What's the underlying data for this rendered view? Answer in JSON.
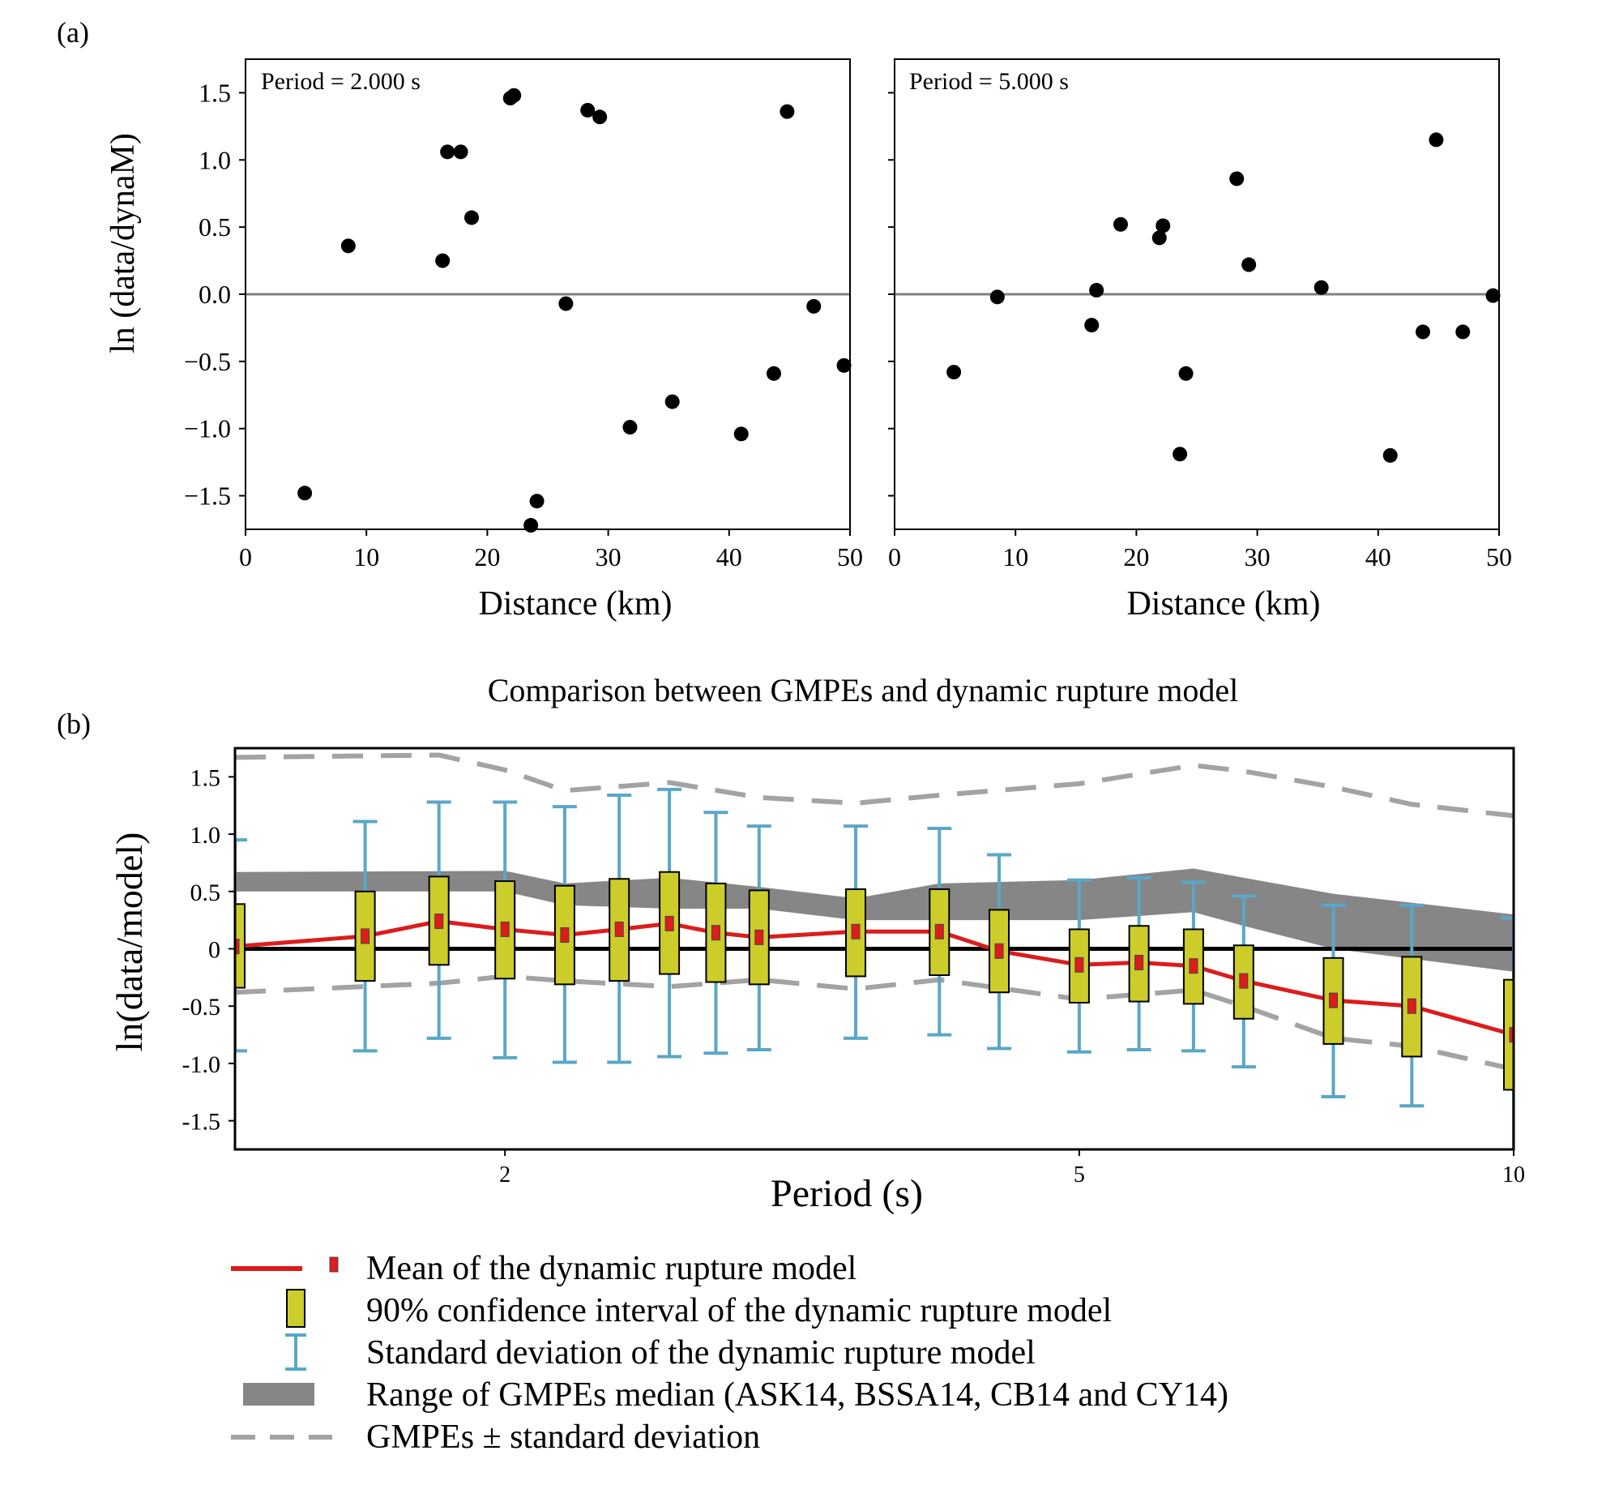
{
  "chart_data": [
    {
      "panel_label": "(a)",
      "type": "scatter",
      "annotation": "Period = 2.000 s",
      "xlabel": "Distance (km)",
      "ylabel": "ln (data/dynaM)",
      "xlim": [
        0,
        50
      ],
      "ylim": [
        -1.75,
        1.75
      ],
      "xticks": [
        0,
        10,
        20,
        30,
        40,
        50
      ],
      "yticks": [
        -1.5,
        -1.0,
        -0.5,
        0.0,
        0.5,
        1.0,
        1.5
      ],
      "ytick_labels": [
        "−1.5",
        "−1.0",
        "−0.5",
        "0.0",
        "0.5",
        "1.0",
        "1.5"
      ],
      "reference_line": 0,
      "points": [
        {
          "x": 4.9,
          "y": -1.48
        },
        {
          "x": 8.5,
          "y": 0.36
        },
        {
          "x": 16.3,
          "y": 0.25
        },
        {
          "x": 16.7,
          "y": 1.06
        },
        {
          "x": 17.8,
          "y": 1.06
        },
        {
          "x": 18.7,
          "y": 0.57
        },
        {
          "x": 21.9,
          "y": 1.46
        },
        {
          "x": 22.2,
          "y": 1.48
        },
        {
          "x": 23.6,
          "y": -1.72
        },
        {
          "x": 24.1,
          "y": -1.54
        },
        {
          "x": 26.5,
          "y": -0.07
        },
        {
          "x": 28.3,
          "y": 1.37
        },
        {
          "x": 29.3,
          "y": 1.32
        },
        {
          "x": 31.8,
          "y": -0.99
        },
        {
          "x": 35.3,
          "y": -0.8
        },
        {
          "x": 41.0,
          "y": -1.04
        },
        {
          "x": 43.7,
          "y": -0.59
        },
        {
          "x": 44.8,
          "y": 1.36
        },
        {
          "x": 47.0,
          "y": -0.09
        },
        {
          "x": 49.5,
          "y": -0.53
        }
      ]
    },
    {
      "type": "scatter",
      "annotation": "Period = 5.000 s",
      "xlabel": "Distance (km)",
      "xlim": [
        0,
        50
      ],
      "ylim": [
        -1.75,
        1.75
      ],
      "xticks": [
        0,
        10,
        20,
        30,
        40,
        50
      ],
      "reference_line": 0,
      "points": [
        {
          "x": 4.9,
          "y": -0.58
        },
        {
          "x": 8.5,
          "y": -0.02
        },
        {
          "x": 16.3,
          "y": -0.23
        },
        {
          "x": 16.7,
          "y": 0.03
        },
        {
          "x": 18.7,
          "y": 0.52
        },
        {
          "x": 21.9,
          "y": 0.42
        },
        {
          "x": 22.2,
          "y": 0.51
        },
        {
          "x": 23.6,
          "y": -1.19
        },
        {
          "x": 24.1,
          "y": -0.59
        },
        {
          "x": 28.3,
          "y": 0.86
        },
        {
          "x": 29.3,
          "y": 0.22
        },
        {
          "x": 35.3,
          "y": 0.05
        },
        {
          "x": 41.0,
          "y": -1.2
        },
        {
          "x": 43.7,
          "y": -0.28
        },
        {
          "x": 44.8,
          "y": 1.15
        },
        {
          "x": 47.0,
          "y": -0.28
        },
        {
          "x": 49.5,
          "y": -0.01
        }
      ]
    },
    {
      "panel_label": "(b)",
      "type": "line",
      "title": "Comparison between GMPEs and dynamic rupture model",
      "xlabel": "Period (s)",
      "ylabel": "ln(data/model)",
      "x_scale": "log",
      "xlim": [
        1.3,
        10.0
      ],
      "ylim": [
        -1.75,
        1.75
      ],
      "xticks": [
        2,
        5,
        10
      ],
      "xtick_labels": [
        "2",
        "5",
        "10"
      ],
      "yticks": [
        -1.5,
        -1.0,
        -0.5,
        0,
        0.5,
        1.0,
        1.5
      ],
      "ytick_labels": [
        "-1.5",
        "-1.0",
        "-0.5",
        "0",
        "0.5",
        "1.0",
        "1.5"
      ],
      "reference_line": 0,
      "periods": [
        1.3,
        1.6,
        1.8,
        2.0,
        2.2,
        2.4,
        2.6,
        2.8,
        3.0,
        3.5,
        4.0,
        4.4,
        5.0,
        5.5,
        6.0,
        6.5,
        7.5,
        8.5,
        10.0
      ],
      "model_mean": [
        0.02,
        0.11,
        0.24,
        0.17,
        0.12,
        0.17,
        0.22,
        0.14,
        0.1,
        0.15,
        0.15,
        -0.02,
        -0.14,
        -0.12,
        -0.15,
        -0.28,
        -0.45,
        -0.5,
        -0.75
      ],
      "ci90_low": [
        -0.34,
        -0.28,
        -0.14,
        -0.26,
        -0.31,
        -0.28,
        -0.22,
        -0.29,
        -0.31,
        -0.24,
        -0.23,
        -0.38,
        -0.47,
        -0.46,
        -0.48,
        -0.61,
        -0.83,
        -0.94,
        -1.23
      ],
      "ci90_high": [
        0.39,
        0.5,
        0.63,
        0.59,
        0.55,
        0.61,
        0.67,
        0.57,
        0.51,
        0.52,
        0.52,
        0.34,
        0.17,
        0.2,
        0.17,
        0.03,
        -0.08,
        -0.07,
        -0.27
      ],
      "std_low": [
        -0.89,
        -0.89,
        -0.78,
        -0.95,
        -0.99,
        -0.99,
        -0.94,
        -0.91,
        -0.88,
        -0.78,
        -0.75,
        -0.87,
        -0.9,
        -0.88,
        -0.89,
        -1.03,
        -1.29,
        -1.37,
        -1.77
      ],
      "std_high": [
        0.95,
        1.11,
        1.28,
        1.28,
        1.24,
        1.34,
        1.39,
        1.19,
        1.07,
        1.07,
        1.05,
        0.82,
        0.6,
        0.62,
        0.58,
        0.46,
        0.38,
        0.38,
        0.27
      ],
      "gmpe_range_x": [
        1.3,
        2.0,
        2.2,
        2.6,
        3.0,
        3.5,
        4.0,
        5.0,
        6.0,
        6.5,
        7.5,
        10.0
      ],
      "gmpe_range_low": [
        0.5,
        0.5,
        0.38,
        0.35,
        0.35,
        0.25,
        0.25,
        0.25,
        0.32,
        0.2,
        0.0,
        -0.2
      ],
      "gmpe_range_high": [
        0.67,
        0.68,
        0.57,
        0.62,
        0.54,
        0.44,
        0.57,
        0.6,
        0.7,
        0.62,
        0.48,
        0.3
      ],
      "gmpe_std_x": [
        1.3,
        1.8,
        2.0,
        2.2,
        2.6,
        3.0,
        3.5,
        4.0,
        5.0,
        6.0,
        6.5,
        7.5,
        8.5,
        10.0
      ],
      "gmpe_std_high": [
        1.67,
        1.69,
        1.56,
        1.38,
        1.45,
        1.32,
        1.27,
        1.34,
        1.44,
        1.6,
        1.55,
        1.41,
        1.26,
        1.16
      ],
      "gmpe_std_low": [
        -0.38,
        -0.3,
        -0.24,
        -0.28,
        -0.33,
        -0.27,
        -0.35,
        -0.27,
        -0.44,
        -0.36,
        -0.5,
        -0.78,
        -0.85,
        -1.05
      ],
      "colors": {
        "mean_line": "#dd1c1c",
        "ci_box": "#cccc2b",
        "std_bar": "#5aa7c8",
        "gmpe_range": "#868686",
        "gmpe_std": "#a3a3a3",
        "points": "#000000",
        "reference_line_a": "#808080",
        "reference_line_b": "#000000"
      },
      "legend": [
        {
          "label": "Mean of the dynamic rupture model",
          "symbol": "mean"
        },
        {
          "label": "90% confidence interval of the dynamic rupture model",
          "symbol": "ci"
        },
        {
          "label": "Standard deviation of the dynamic rupture model",
          "symbol": "std"
        },
        {
          "label": "Range of GMPEs median (ASK14, BSSA14, CB14 and CY14)",
          "symbol": "range"
        },
        {
          "label": "GMPEs ± standard deviation",
          "symbol": "dash"
        }
      ]
    }
  ]
}
